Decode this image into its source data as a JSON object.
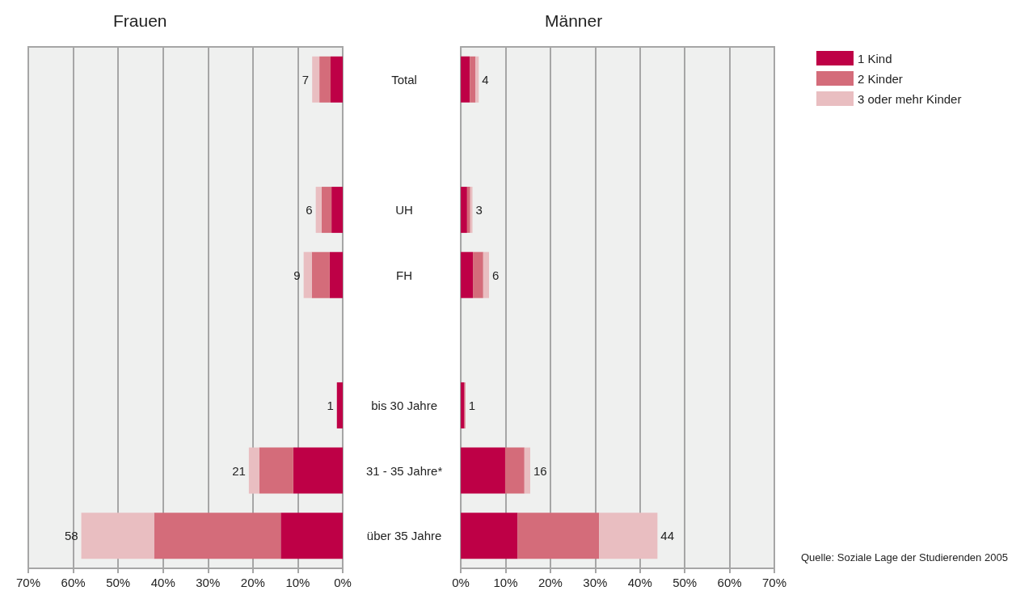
{
  "chart_data": [
    {
      "type": "bar",
      "orientation": "horizontal",
      "stacked": true,
      "title": "Frauen",
      "categories": [
        null,
        null,
        null,
        null,
        null,
        null,
        null,
        null
      ],
      "series": [
        {
          "color": "#be0046",
          "values": [
            2.7,
            null,
            2.5,
            2.9,
            null,
            1.3,
            11.0,
            13.8
          ]
        },
        {
          "color": "#d46c7a",
          "values": [
            2.5,
            null,
            2.2,
            4.0,
            null,
            0,
            7.6,
            28.2
          ]
        },
        {
          "color": "#e9bec1",
          "values": [
            1.6,
            null,
            1.3,
            1.8,
            null,
            0,
            2.3,
            16.2
          ]
        }
      ],
      "totals": [
        "7",
        null,
        "6",
        "9",
        null,
        "1",
        "21",
        "58"
      ],
      "xlim": [
        70,
        0
      ],
      "xticks": [
        {
          "value": 70,
          "label": "70%"
        },
        {
          "value": 60,
          "label": "60%"
        },
        {
          "value": 50,
          "label": "50%"
        },
        {
          "value": 40,
          "label": "40%"
        },
        {
          "value": 30,
          "label": "30%"
        },
        {
          "value": 20,
          "label": "20%"
        },
        {
          "value": 10,
          "label": "10%"
        },
        {
          "value": 0,
          "label": "0%"
        }
      ],
      "grid": "x",
      "legend": false,
      "tick_labels": "x"
    },
    {
      "type": "bar",
      "orientation": "horizontal",
      "stacked": true,
      "title": "Männer",
      "categories": [
        "Total",
        null,
        "UH",
        "FH",
        null,
        "bis 30 Jahre",
        "31 - 35 Jahre*",
        "über 35 Jahre"
      ],
      "series": [
        {
          "name": "1 Kind",
          "color": "#be0046",
          "values": [
            2.0,
            null,
            1.4,
            2.7,
            null,
            0.8,
            9.9,
            12.7
          ]
        },
        {
          "name": "2 Kinder",
          "color": "#d46c7a",
          "values": [
            1.3,
            null,
            0.7,
            2.3,
            null,
            0.2,
            4.3,
            18.2
          ]
        },
        {
          "name": "3 oder mehr Kinder",
          "color": "#e9bec1",
          "values": [
            0.7,
            null,
            0.5,
            1.3,
            null,
            0,
            1.3,
            13.0
          ]
        }
      ],
      "totals": [
        "4",
        null,
        "3",
        "6",
        null,
        "1",
        "16",
        "44"
      ],
      "xlim": [
        0,
        70
      ],
      "xticks": [
        {
          "value": 0,
          "label": "0%"
        },
        {
          "value": 10,
          "label": "10%"
        },
        {
          "value": 20,
          "label": "20%"
        },
        {
          "value": 30,
          "label": "30%"
        },
        {
          "value": 40,
          "label": "40%"
        },
        {
          "value": 50,
          "label": "50%"
        },
        {
          "value": 60,
          "label": "60%"
        },
        {
          "value": 70,
          "label": "70%"
        }
      ],
      "grid": "x",
      "legend": "top right",
      "annotations": [
        "Quelle: Soziale Lage der Studierenden 2005"
      ]
    }
  ]
}
